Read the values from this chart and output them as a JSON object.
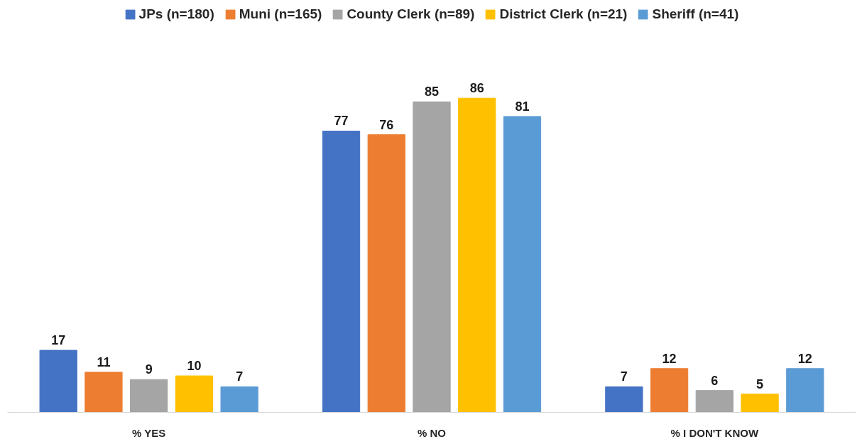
{
  "chart_data": {
    "type": "bar",
    "categories": [
      "% YES",
      "% NO",
      "% I DON'T KNOW"
    ],
    "series": [
      {
        "name": "JPs (n=180)",
        "color": "#4472c4",
        "values": [
          17,
          77,
          7
        ]
      },
      {
        "name": "Muni (n=165)",
        "color": "#ed7d31",
        "values": [
          11,
          76,
          12
        ]
      },
      {
        "name": "County Clerk (n=89)",
        "color": "#a5a5a5",
        "values": [
          9,
          85,
          6
        ]
      },
      {
        "name": "District Clerk (n=21)",
        "color": "#ffc000",
        "values": [
          10,
          86,
          5
        ]
      },
      {
        "name": "Sheriff (n=41)",
        "color": "#5b9bd5",
        "values": [
          7,
          81,
          12
        ]
      }
    ],
    "data_labels": true,
    "legend": "top",
    "grid": false
  }
}
